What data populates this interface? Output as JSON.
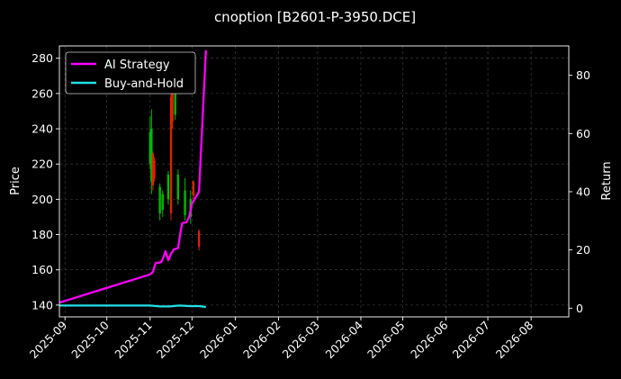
{
  "chart_data": {
    "type": "line",
    "title": "cnoption [B2601-P-3950.DCE]",
    "xlabel": "",
    "ylabel": "Price",
    "y2label": "Return",
    "x_range": [
      "2025-08-28",
      "2026-08-28"
    ],
    "ylim": [
      133.3,
      287
    ],
    "y2lim": [
      -3,
      90.1
    ],
    "y_ticks": [
      140,
      160,
      180,
      200,
      220,
      240,
      260,
      280
    ],
    "y2_ticks": [
      0,
      20,
      40,
      60,
      80
    ],
    "x_ticks": [
      "2025-09",
      "2025-10",
      "2025-11",
      "2025-12",
      "2026-01",
      "2026-02",
      "2026-03",
      "2026-04",
      "2026-05",
      "2026-06",
      "2026-07",
      "2026-08"
    ],
    "grid": true,
    "legend_position": "top-left",
    "colors": {
      "background": "#000000",
      "up": "#00bb00",
      "down": "#dd2200",
      "grid": "#444444"
    },
    "series": [
      {
        "name": "AI Strategy",
        "axis": "right",
        "color": "#ff00ff",
        "points": [
          [
            "2025-08-28",
            1.9
          ],
          [
            "2025-11-01",
            11.6
          ],
          [
            "2025-11-03",
            12.5
          ],
          [
            "2025-11-05",
            15.5
          ],
          [
            "2025-11-09",
            15.8
          ],
          [
            "2025-11-11",
            18.0
          ],
          [
            "2025-11-12",
            19.6
          ],
          [
            "2025-11-14",
            16.5
          ],
          [
            "2025-11-16",
            18.7
          ],
          [
            "2025-11-18",
            20.2
          ],
          [
            "2025-11-21",
            20.6
          ],
          [
            "2025-11-23",
            26.7
          ],
          [
            "2025-11-24",
            29.2
          ],
          [
            "2025-11-27",
            29.5
          ],
          [
            "2025-11-29",
            31.3
          ],
          [
            "2025-12-01",
            35.9
          ],
          [
            "2025-12-06",
            40.0
          ],
          [
            "2025-12-11",
            88.6
          ]
        ]
      },
      {
        "name": "Buy-and-Hold",
        "axis": "right",
        "color": "#22e0e8",
        "points": [
          [
            "2025-08-28",
            0.9
          ],
          [
            "2025-11-01",
            0.9
          ],
          [
            "2025-11-08",
            0.6
          ],
          [
            "2025-11-15",
            0.6
          ],
          [
            "2025-11-22",
            0.9
          ],
          [
            "2025-11-29",
            0.7
          ],
          [
            "2025-12-06",
            0.7
          ],
          [
            "2025-12-11",
            0.4
          ]
        ]
      }
    ],
    "candles": [
      {
        "date": "2025-11-01",
        "low": 217,
        "high": 247,
        "open": 220,
        "close": 238
      },
      {
        "date": "2025-11-02",
        "low": 203,
        "high": 251,
        "open": 210,
        "close": 240
      },
      {
        "date": "2025-11-03",
        "low": 205,
        "high": 227,
        "open": 226,
        "close": 208
      },
      {
        "date": "2025-11-04",
        "low": 210,
        "high": 224,
        "open": 222,
        "close": 212
      },
      {
        "date": "2025-11-08",
        "low": 188,
        "high": 209,
        "open": 192,
        "close": 207
      },
      {
        "date": "2025-11-10",
        "low": 190,
        "high": 205,
        "open": 194,
        "close": 203
      },
      {
        "date": "2025-11-14",
        "low": 197,
        "high": 216,
        "open": 200,
        "close": 214
      },
      {
        "date": "2025-11-16",
        "low": 188,
        "high": 262,
        "open": 258,
        "close": 192
      },
      {
        "date": "2025-11-17",
        "low": 240,
        "high": 266,
        "open": 262,
        "close": 244
      },
      {
        "date": "2025-11-19",
        "low": 245,
        "high": 266,
        "open": 248,
        "close": 264
      },
      {
        "date": "2025-11-21",
        "low": 197,
        "high": 217,
        "open": 200,
        "close": 214
      },
      {
        "date": "2025-11-26",
        "low": 188,
        "high": 212,
        "open": 191,
        "close": 205
      },
      {
        "date": "2025-11-30",
        "low": 186,
        "high": 205,
        "open": 190,
        "close": 200
      },
      {
        "date": "2025-12-02",
        "low": 200,
        "high": 211,
        "open": 210,
        "close": 202
      },
      {
        "date": "2025-12-06",
        "low": 171,
        "high": 183,
        "open": 182,
        "close": 173
      }
    ]
  }
}
